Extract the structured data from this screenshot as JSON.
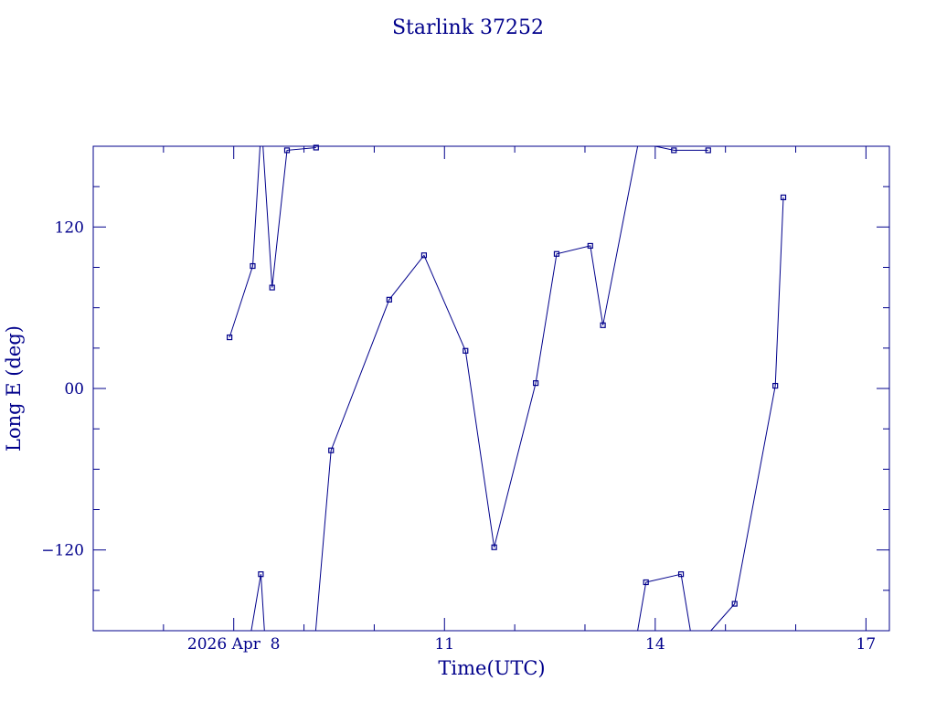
{
  "colors": {
    "ink": "#00008b"
  },
  "chart_data": {
    "type": "line",
    "title": "Starlink 37252",
    "xlabel": "Time(UTC)",
    "ylabel": "Long E (deg)",
    "xlim": [
      "2026-04-06 00:00",
      "2026-04-17 08:00"
    ],
    "ylim": [
      -180,
      180
    ],
    "grid": false,
    "legend": "none",
    "x_ticks": [
      {
        "value": "2026-04-08",
        "label": "2026 Apr  8"
      },
      {
        "value": "2026-04-11",
        "label": "11"
      },
      {
        "value": "2026-04-14",
        "label": "14"
      },
      {
        "value": "2026-04-17",
        "label": "17"
      }
    ],
    "y_ticks": [
      {
        "value": 120,
        "label": "120"
      },
      {
        "value": 0,
        "label": "00"
      },
      {
        "value": -120,
        "label": "−120"
      }
    ],
    "series": [
      {
        "points": [
          {
            "t": "2026-04-07 22:34",
            "lon": 38
          },
          {
            "t": "2026-04-08 06:29",
            "lon": 91
          },
          {
            "t": "2026-04-08 09:00",
            "lon": 180
          },
          {
            "t": "2026-04-08 10:00",
            "lon": 180
          },
          {
            "t": "2026-04-08 13:07",
            "lon": 75
          },
          {
            "t": "2026-04-08 18:12",
            "lon": 177
          },
          {
            "t": "2026-04-09 04:08",
            "lon": 179
          }
        ]
      },
      {
        "points": [
          {
            "t": "2026-04-08 06:00",
            "lon": -180
          },
          {
            "t": "2026-04-08 09:16",
            "lon": -138
          },
          {
            "t": "2026-04-08 10:30",
            "lon": -180
          }
        ]
      },
      {
        "points": [
          {
            "t": "2026-04-09 04:00",
            "lon": -180
          },
          {
            "t": "2026-04-09 09:16",
            "lon": -46
          },
          {
            "t": "2026-04-10 05:08",
            "lon": 66
          },
          {
            "t": "2026-04-10 17:01",
            "lon": 99
          },
          {
            "t": "2026-04-11 07:11",
            "lon": 28
          },
          {
            "t": "2026-04-11 16:59",
            "lon": -118
          },
          {
            "t": "2026-04-12 07:11",
            "lon": 4
          },
          {
            "t": "2026-04-12 14:19",
            "lon": 100
          },
          {
            "t": "2026-04-13 01:49",
            "lon": 106
          },
          {
            "t": "2026-04-13 06:08",
            "lon": 47
          },
          {
            "t": "2026-04-13 18:00",
            "lon": 180
          },
          {
            "t": "2026-04-14 00:00",
            "lon": 180
          },
          {
            "t": "2026-04-14 06:23",
            "lon": 177
          },
          {
            "t": "2026-04-14 18:06",
            "lon": 177
          }
        ]
      },
      {
        "points": [
          {
            "t": "2026-04-13 18:00",
            "lon": -180
          },
          {
            "t": "2026-04-13 20:50",
            "lon": -144
          },
          {
            "t": "2026-04-14 08:49",
            "lon": -138
          },
          {
            "t": "2026-04-14 12:00",
            "lon": -180
          }
        ]
      },
      {
        "points": [
          {
            "t": "2026-04-14 19:00",
            "lon": -180
          },
          {
            "t": "2026-04-15 03:08",
            "lon": -160
          },
          {
            "t": "2026-04-15 17:01",
            "lon": 2
          },
          {
            "t": "2026-04-15 19:47",
            "lon": 142
          }
        ]
      }
    ],
    "markers": [
      {
        "t": "2026-04-07 22:34",
        "lon": 38
      },
      {
        "t": "2026-04-08 06:29",
        "lon": 91
      },
      {
        "t": "2026-04-08 09:16",
        "lon": -138
      },
      {
        "t": "2026-04-08 13:07",
        "lon": 75
      },
      {
        "t": "2026-04-08 18:12",
        "lon": 177
      },
      {
        "t": "2026-04-09 04:08",
        "lon": 179
      },
      {
        "t": "2026-04-09 09:16",
        "lon": -46
      },
      {
        "t": "2026-04-10 05:08",
        "lon": 66
      },
      {
        "t": "2026-04-10 17:01",
        "lon": 99
      },
      {
        "t": "2026-04-11 07:11",
        "lon": 28
      },
      {
        "t": "2026-04-11 16:59",
        "lon": -118
      },
      {
        "t": "2026-04-12 07:11",
        "lon": 4
      },
      {
        "t": "2026-04-12 14:19",
        "lon": 100
      },
      {
        "t": "2026-04-13 01:49",
        "lon": 106
      },
      {
        "t": "2026-04-13 06:08",
        "lon": 47
      },
      {
        "t": "2026-04-13 20:50",
        "lon": -144
      },
      {
        "t": "2026-04-14 06:23",
        "lon": 177
      },
      {
        "t": "2026-04-14 08:49",
        "lon": -138
      },
      {
        "t": "2026-04-14 18:06",
        "lon": 177
      },
      {
        "t": "2026-04-15 03:08",
        "lon": -160
      },
      {
        "t": "2026-04-15 17:01",
        "lon": 2
      },
      {
        "t": "2026-04-15 19:47",
        "lon": 142
      }
    ]
  }
}
